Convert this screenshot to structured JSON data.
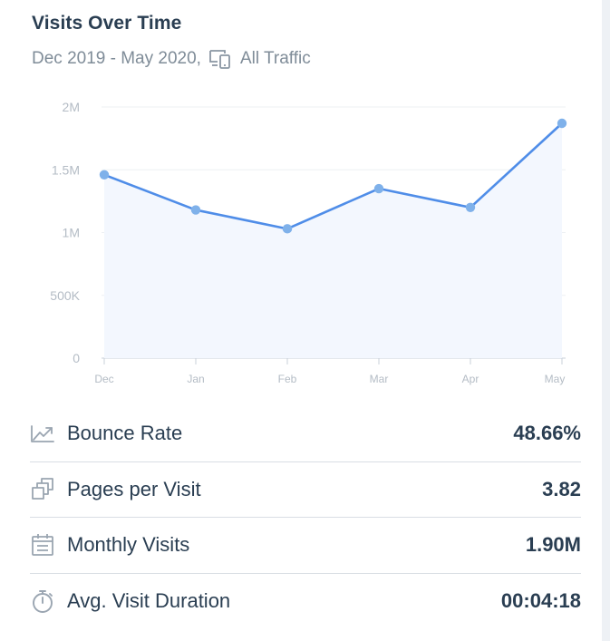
{
  "card": {
    "title": "Visits Over Time",
    "date_range": "Dec 2019 - May 2020,",
    "traffic_filter": "All Traffic",
    "traffic_icon": "devices-icon"
  },
  "chart_data": {
    "type": "line",
    "title": "",
    "xlabel": "",
    "ylabel": "",
    "categories": [
      "Dec",
      "Jan",
      "Feb",
      "Mar",
      "Apr",
      "May"
    ],
    "values": [
      1460000,
      1180000,
      1030000,
      1350000,
      1200000,
      1870000
    ],
    "ylim": [
      0,
      2000000
    ],
    "yticks": [
      0,
      500000,
      1000000,
      1500000,
      2000000
    ],
    "ytick_labels": [
      "0",
      "500K",
      "1M",
      "1.5M",
      "2M"
    ],
    "grid": true,
    "area_fill": true,
    "line_color": "#4f8de8",
    "point_color": "#7fb1ea",
    "fill_color": "#f3f7fe"
  },
  "metrics": [
    {
      "icon": "trend-arrow-icon",
      "label": "Bounce Rate",
      "value": "48.66%"
    },
    {
      "icon": "stacked-pages-icon",
      "label": "Pages per Visit",
      "value": "3.82"
    },
    {
      "icon": "calendar-icon",
      "label": "Monthly Visits",
      "value": "1.90M"
    },
    {
      "icon": "stopwatch-icon",
      "label": "Avg. Visit Duration",
      "value": "00:04:18"
    }
  ],
  "colors": {
    "text_primary": "#2a3e52",
    "text_secondary": "#7f8c98",
    "icon_gray": "#9aa5b1",
    "divider": "#d9dee4"
  }
}
